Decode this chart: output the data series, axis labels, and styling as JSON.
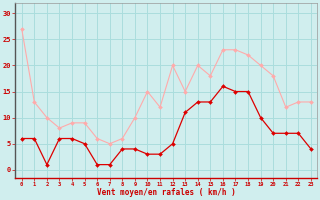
{
  "hours": [
    0,
    1,
    2,
    3,
    4,
    5,
    6,
    7,
    8,
    9,
    10,
    11,
    12,
    13,
    14,
    15,
    16,
    17,
    18,
    19,
    20,
    21,
    22,
    23
  ],
  "wind_avg": [
    6,
    6,
    1,
    6,
    6,
    5,
    1,
    1,
    4,
    4,
    3,
    3,
    5,
    11,
    13,
    13,
    16,
    15,
    15,
    10,
    7,
    7,
    7,
    4
  ],
  "wind_gust": [
    27,
    13,
    10,
    8,
    9,
    9,
    6,
    5,
    6,
    10,
    15,
    12,
    20,
    15,
    20,
    18,
    23,
    23,
    22,
    20,
    18,
    12,
    13,
    13
  ],
  "line_avg_color": "#dd0000",
  "line_gust_color": "#ffaaaa",
  "bg_color": "#d0eeee",
  "grid_color": "#aadddd",
  "xlabel": "Vent moyen/en rafales ( km/h )",
  "xlabel_color": "#cc0000",
  "tick_color": "#cc0000",
  "yticks": [
    0,
    5,
    10,
    15,
    20,
    25,
    30
  ],
  "ylim": [
    -1.5,
    32
  ],
  "xlim": [
    -0.5,
    23.5
  ]
}
